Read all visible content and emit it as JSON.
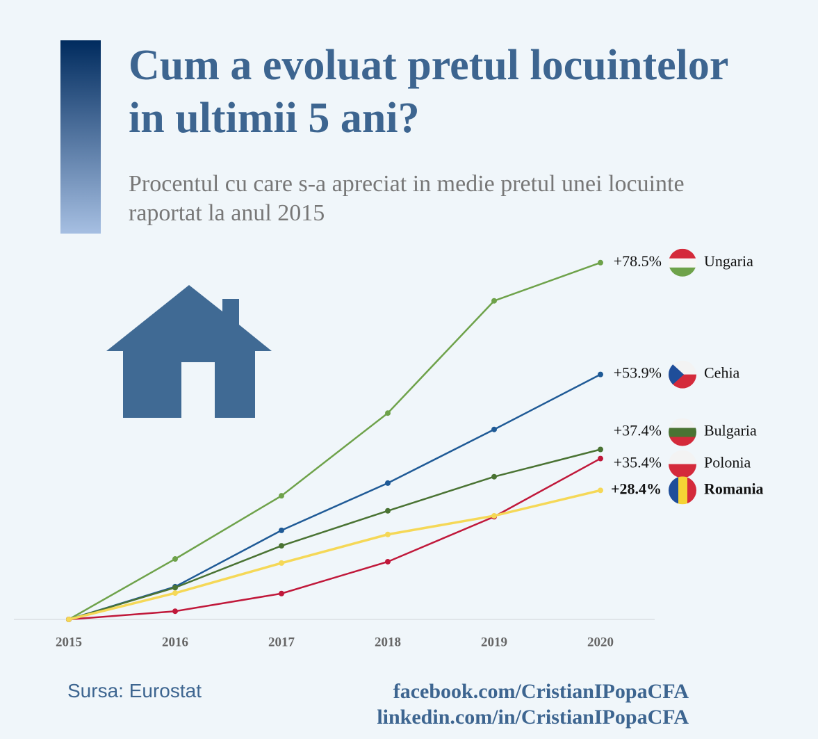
{
  "chart_data": {
    "type": "line",
    "title": "Cum a evoluat pretul locuintelor in ultimii 5 ani?",
    "subtitle": "Procentul cu care s-a apreciat in medie pretul unei locuinte raportat la anul 2015",
    "categories": [
      "2015",
      "2016",
      "2017",
      "2018",
      "2019",
      "2020"
    ],
    "ylim": [
      0,
      80
    ],
    "series": [
      {
        "name": "Ungaria",
        "color": "#6ea24a",
        "values": [
          0,
          13.3,
          27.2,
          45.4,
          70.1,
          78.5
        ],
        "value_labels": [
          null,
          null,
          null,
          null,
          null,
          "+78.5%"
        ]
      },
      {
        "name": "Cehia",
        "color": "#1f5a96",
        "values": [
          0,
          7.2,
          19.6,
          30.0,
          41.8,
          53.9
        ],
        "value_labels": [
          null,
          null,
          null,
          null,
          null,
          "+53.9%"
        ]
      },
      {
        "name": "Bulgaria",
        "color": "#4a7333",
        "values": [
          0,
          7.0,
          16.2,
          23.9,
          31.4,
          37.4
        ],
        "value_labels": [
          null,
          null,
          null,
          null,
          null,
          "+37.4%"
        ]
      },
      {
        "name": "Polonia",
        "color": "#c0183a",
        "values": [
          0,
          1.8,
          5.7,
          12.7,
          22.6,
          35.4
        ],
        "value_labels": [
          null,
          null,
          null,
          null,
          null,
          "+35.4%"
        ]
      },
      {
        "name": "Romania",
        "color": "#f5d857",
        "bold": true,
        "values": [
          0,
          5.8,
          12.4,
          18.7,
          22.8,
          28.4
        ],
        "value_labels": [
          null,
          null,
          null,
          null,
          null,
          "+28.4%"
        ]
      }
    ],
    "source": "Sursa: Eurostat",
    "links": [
      "facebook.com/CristianIPopaCFA",
      "linkedin.com/in/CristianIPopaCFA"
    ]
  }
}
